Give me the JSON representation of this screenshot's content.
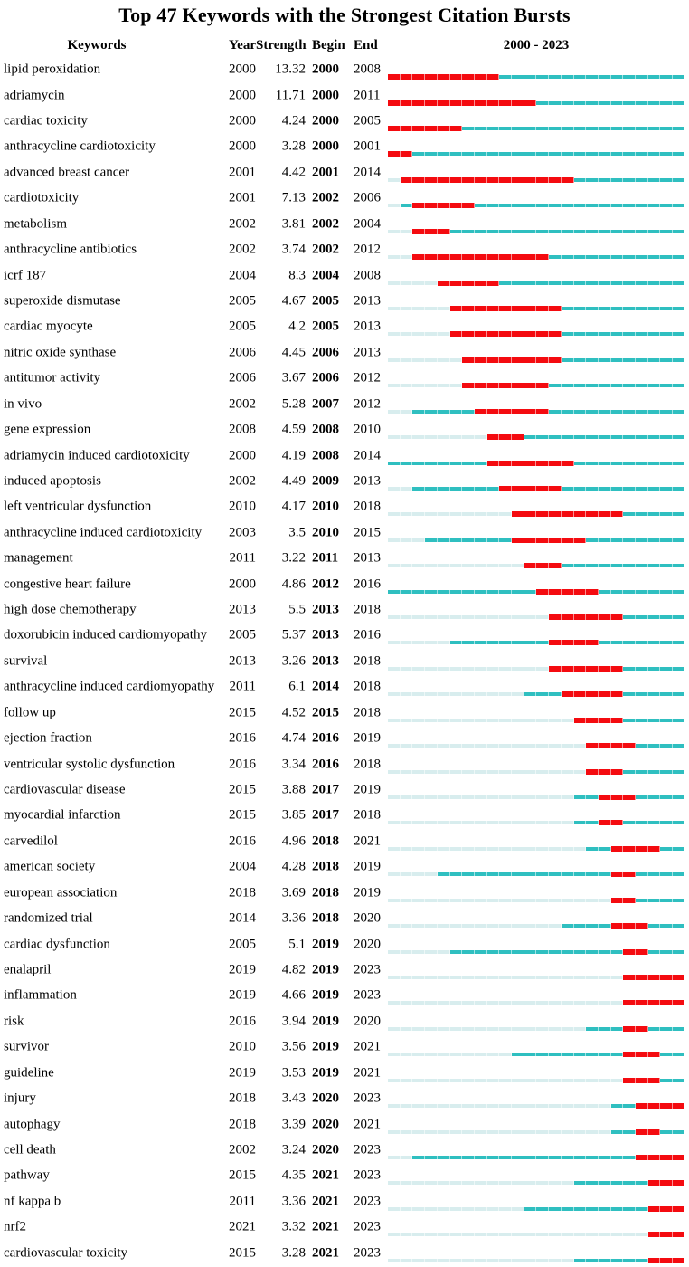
{
  "title": "Top 47 Keywords with the Strongest Citation Bursts",
  "columns": {
    "keywords": "Keywords",
    "year": "Year",
    "strength": "Strength",
    "begin": "Begin",
    "end": "End",
    "range": "2000 - 2023"
  },
  "colors": {
    "burst": "#f40b10",
    "active": "#2fbfc0",
    "inactive": "#d8edee",
    "text": "#000000"
  },
  "chart_data": {
    "type": "bar",
    "subtype": "citation-burst-timeline",
    "title": "Top 47 Keywords with the Strongest Citation Bursts",
    "x_range": [
      2000,
      2023
    ],
    "legend": {
      "burst_color_meaning": "burst interval (Begin-End)",
      "active_color_meaning": "years after first appearance",
      "inactive_color_meaning": "years before first appearance"
    },
    "columns": [
      "Keywords",
      "Year",
      "Strength",
      "Begin",
      "End",
      "2000 - 2023"
    ],
    "rows": [
      {
        "keyword": "lipid peroxidation",
        "year": 2000,
        "strength": "13.32",
        "begin": 2000,
        "end": 2008
      },
      {
        "keyword": "adriamycin",
        "year": 2000,
        "strength": "11.71",
        "begin": 2000,
        "end": 2011
      },
      {
        "keyword": "cardiac toxicity",
        "year": 2000,
        "strength": "4.24",
        "begin": 2000,
        "end": 2005
      },
      {
        "keyword": "anthracycline cardiotoxicity",
        "year": 2000,
        "strength": "3.28",
        "begin": 2000,
        "end": 2001
      },
      {
        "keyword": "advanced breast cancer",
        "year": 2001,
        "strength": "4.42",
        "begin": 2001,
        "end": 2014
      },
      {
        "keyword": "cardiotoxicity",
        "year": 2001,
        "strength": "7.13",
        "begin": 2002,
        "end": 2006
      },
      {
        "keyword": "metabolism",
        "year": 2002,
        "strength": "3.81",
        "begin": 2002,
        "end": 2004
      },
      {
        "keyword": "anthracycline antibiotics",
        "year": 2002,
        "strength": "3.74",
        "begin": 2002,
        "end": 2012
      },
      {
        "keyword": "icrf 187",
        "year": 2004,
        "strength": "8.3",
        "begin": 2004,
        "end": 2008
      },
      {
        "keyword": "superoxide dismutase",
        "year": 2005,
        "strength": "4.67",
        "begin": 2005,
        "end": 2013
      },
      {
        "keyword": "cardiac myocyte",
        "year": 2005,
        "strength": "4.2",
        "begin": 2005,
        "end": 2013
      },
      {
        "keyword": "nitric oxide synthase",
        "year": 2006,
        "strength": "4.45",
        "begin": 2006,
        "end": 2013
      },
      {
        "keyword": "antitumor activity",
        "year": 2006,
        "strength": "3.67",
        "begin": 2006,
        "end": 2012
      },
      {
        "keyword": "in vivo",
        "year": 2002,
        "strength": "5.28",
        "begin": 2007,
        "end": 2012
      },
      {
        "keyword": "gene expression",
        "year": 2008,
        "strength": "4.59",
        "begin": 2008,
        "end": 2010
      },
      {
        "keyword": "adriamycin induced cardiotoxicity",
        "year": 2000,
        "strength": "4.19",
        "begin": 2008,
        "end": 2014
      },
      {
        "keyword": "induced apoptosis",
        "year": 2002,
        "strength": "4.49",
        "begin": 2009,
        "end": 2013
      },
      {
        "keyword": "left ventricular dysfunction",
        "year": 2010,
        "strength": "4.17",
        "begin": 2010,
        "end": 2018
      },
      {
        "keyword": "anthracycline induced cardiotoxicity",
        "year": 2003,
        "strength": "3.5",
        "begin": 2010,
        "end": 2015
      },
      {
        "keyword": "management",
        "year": 2011,
        "strength": "3.22",
        "begin": 2011,
        "end": 2013
      },
      {
        "keyword": "congestive heart failure",
        "year": 2000,
        "strength": "4.86",
        "begin": 2012,
        "end": 2016
      },
      {
        "keyword": "high dose chemotherapy",
        "year": 2013,
        "strength": "5.5",
        "begin": 2013,
        "end": 2018
      },
      {
        "keyword": "doxorubicin induced cardiomyopathy",
        "year": 2005,
        "strength": "5.37",
        "begin": 2013,
        "end": 2016
      },
      {
        "keyword": "survival",
        "year": 2013,
        "strength": "3.26",
        "begin": 2013,
        "end": 2018
      },
      {
        "keyword": "anthracycline induced cardiomyopathy",
        "year": 2011,
        "strength": "6.1",
        "begin": 2014,
        "end": 2018
      },
      {
        "keyword": "follow up",
        "year": 2015,
        "strength": "4.52",
        "begin": 2015,
        "end": 2018
      },
      {
        "keyword": "ejection fraction",
        "year": 2016,
        "strength": "4.74",
        "begin": 2016,
        "end": 2019
      },
      {
        "keyword": "ventricular systolic dysfunction",
        "year": 2016,
        "strength": "3.34",
        "begin": 2016,
        "end": 2018
      },
      {
        "keyword": "cardiovascular disease",
        "year": 2015,
        "strength": "3.88",
        "begin": 2017,
        "end": 2019
      },
      {
        "keyword": "myocardial infarction",
        "year": 2015,
        "strength": "3.85",
        "begin": 2017,
        "end": 2018
      },
      {
        "keyword": "carvedilol",
        "year": 2016,
        "strength": "4.96",
        "begin": 2018,
        "end": 2021
      },
      {
        "keyword": "american society",
        "year": 2004,
        "strength": "4.28",
        "begin": 2018,
        "end": 2019
      },
      {
        "keyword": "european association",
        "year": 2018,
        "strength": "3.69",
        "begin": 2018,
        "end": 2019
      },
      {
        "keyword": "randomized trial",
        "year": 2014,
        "strength": "3.36",
        "begin": 2018,
        "end": 2020
      },
      {
        "keyword": "cardiac dysfunction",
        "year": 2005,
        "strength": "5.1",
        "begin": 2019,
        "end": 2020
      },
      {
        "keyword": "enalapril",
        "year": 2019,
        "strength": "4.82",
        "begin": 2019,
        "end": 2023
      },
      {
        "keyword": "inflammation",
        "year": 2019,
        "strength": "4.66",
        "begin": 2019,
        "end": 2023
      },
      {
        "keyword": "risk",
        "year": 2016,
        "strength": "3.94",
        "begin": 2019,
        "end": 2020
      },
      {
        "keyword": "survivor",
        "year": 2010,
        "strength": "3.56",
        "begin": 2019,
        "end": 2021
      },
      {
        "keyword": "guideline",
        "year": 2019,
        "strength": "3.53",
        "begin": 2019,
        "end": 2021
      },
      {
        "keyword": "injury",
        "year": 2018,
        "strength": "3.43",
        "begin": 2020,
        "end": 2023
      },
      {
        "keyword": "autophagy",
        "year": 2018,
        "strength": "3.39",
        "begin": 2020,
        "end": 2021
      },
      {
        "keyword": "cell death",
        "year": 2002,
        "strength": "3.24",
        "begin": 2020,
        "end": 2023
      },
      {
        "keyword": "pathway",
        "year": 2015,
        "strength": "4.35",
        "begin": 2021,
        "end": 2023
      },
      {
        "keyword": "nf kappa b",
        "year": 2011,
        "strength": "3.36",
        "begin": 2021,
        "end": 2023
      },
      {
        "keyword": "nrf2",
        "year": 2021,
        "strength": "3.32",
        "begin": 2021,
        "end": 2023
      },
      {
        "keyword": "cardiovascular toxicity",
        "year": 2015,
        "strength": "3.28",
        "begin": 2021,
        "end": 2023
      }
    ]
  }
}
